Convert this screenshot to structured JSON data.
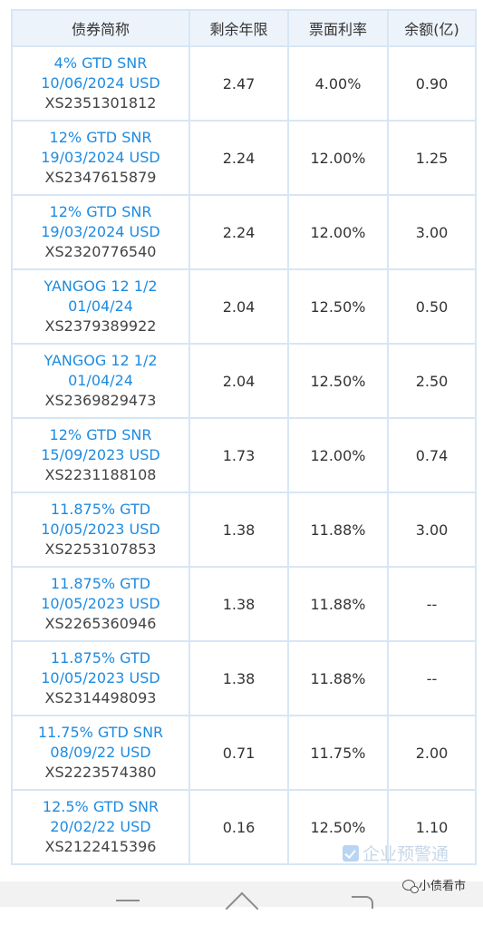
{
  "table": {
    "headers": [
      "债券简称",
      "剩余年限",
      "票面利率",
      "余额(亿)"
    ],
    "rows": [
      {
        "name_line1": "4% GTD SNR",
        "name_line2": "10/06/2024 USD",
        "code": "XS2351301812",
        "years": "2.47",
        "rate": "4.00%",
        "amount": "0.90"
      },
      {
        "name_line1": "12% GTD SNR",
        "name_line2": "19/03/2024 USD",
        "code": "XS2347615879",
        "years": "2.24",
        "rate": "12.00%",
        "amount": "1.25"
      },
      {
        "name_line1": "12% GTD SNR",
        "name_line2": "19/03/2024 USD",
        "code": "XS2320776540",
        "years": "2.24",
        "rate": "12.00%",
        "amount": "3.00"
      },
      {
        "name_line1": "YANGOG 12 1/2",
        "name_line2": "01/04/24",
        "code": "XS2379389922",
        "years": "2.04",
        "rate": "12.50%",
        "amount": "0.50"
      },
      {
        "name_line1": "YANGOG 12 1/2",
        "name_line2": "01/04/24",
        "code": "XS2369829473",
        "years": "2.04",
        "rate": "12.50%",
        "amount": "2.50"
      },
      {
        "name_line1": "12% GTD SNR",
        "name_line2": "15/09/2023 USD",
        "code": "XS2231188108",
        "years": "1.73",
        "rate": "12.00%",
        "amount": "0.74"
      },
      {
        "name_line1": "11.875% GTD",
        "name_line2": "10/05/2023 USD",
        "code": "XS2253107853",
        "years": "1.38",
        "rate": "11.88%",
        "amount": "3.00"
      },
      {
        "name_line1": "11.875% GTD",
        "name_line2": "10/05/2023 USD",
        "code": "XS2265360946",
        "years": "1.38",
        "rate": "11.88%",
        "amount": "--"
      },
      {
        "name_line1": "11.875% GTD",
        "name_line2": "10/05/2023 USD",
        "code": "XS2314498093",
        "years": "1.38",
        "rate": "11.88%",
        "amount": "--"
      },
      {
        "name_line1": "11.75% GTD SNR",
        "name_line2": "08/09/22 USD",
        "code": "XS2223574380",
        "years": "0.71",
        "rate": "11.75%",
        "amount": "2.00"
      },
      {
        "name_line1": "12.5% GTD SNR",
        "name_line2": "20/02/22 USD",
        "code": "XS2122415396",
        "years": "0.16",
        "rate": "12.50%",
        "amount": "1.10"
      }
    ]
  },
  "watermark": {
    "text": "企业预警通",
    "icon": "check-square-icon"
  },
  "account_tag": {
    "text": "小债看市",
    "icon": "wechat-icon"
  },
  "nav": {
    "icons": [
      "menu-icon",
      "home-icon",
      "back-icon"
    ]
  },
  "colors": {
    "link_blue": "#1e8be0",
    "header_bg": "#edf3fb",
    "border": "#d7e6f5"
  }
}
